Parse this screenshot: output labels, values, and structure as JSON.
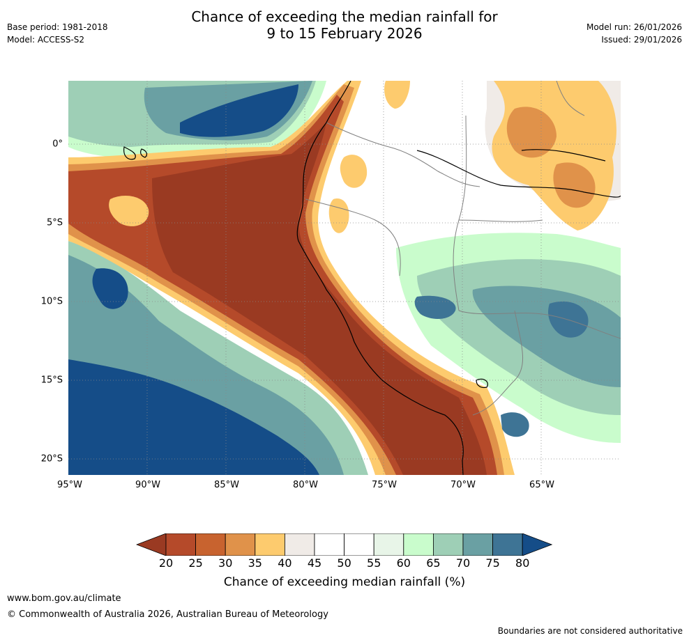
{
  "header": {
    "title_line1": "Chance of exceeding the median rainfall for",
    "title_line2": "9 to 15 February 2026",
    "base_period": "Base period: 1981-2018",
    "model": "Model: ACCESS-S2",
    "model_run": "Model run: 26/01/2026",
    "issued": "Issued: 29/01/2026"
  },
  "map": {
    "x_ticks": [
      "95°W",
      "90°W",
      "85°W",
      "80°W",
      "75°W",
      "70°W",
      "65°W"
    ],
    "y_ticks": [
      "0°",
      "5°S",
      "10°S",
      "15°S",
      "20°S"
    ]
  },
  "colorbar": {
    "labels": [
      "20",
      "25",
      "30",
      "35",
      "40",
      "45",
      "50",
      "55",
      "60",
      "65",
      "70",
      "75",
      "80"
    ],
    "colors": [
      "#9a3a22",
      "#b54a2a",
      "#c8632f",
      "#e0924a",
      "#fdcb6e",
      "#f0ebe7",
      "#ffffff",
      "#ffffff",
      "#e8f5e8",
      "#c9fccc",
      "#9ecfb6",
      "#6aa0a3",
      "#3e7495",
      "#154d88"
    ],
    "title": "Chance of exceeding median rainfall (%)"
  },
  "footer": {
    "url": "www.bom.gov.au/climate",
    "copyright": "© Commonwealth of Australia 2026, Australian Bureau of Meteorology",
    "disclaimer": "Boundaries are not considered authoritative"
  }
}
